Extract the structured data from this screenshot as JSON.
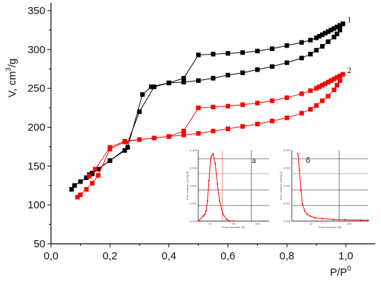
{
  "chart_data": {
    "type": "scatter",
    "title": "",
    "xlabel": "P/P",
    "xlabel_sup": "0",
    "ylabel": "V, cm",
    "ylabel_sup": "3",
    "ylabel_tail": "/g",
    "xlim": [
      0.0,
      1.1
    ],
    "ylim": [
      50,
      360
    ],
    "xticks": [
      0.0,
      0.2,
      0.4,
      0.6,
      0.8,
      1.0
    ],
    "xtick_labels": [
      "0,0",
      "0,2",
      "0,4",
      "0,6",
      "0,8",
      "1,0"
    ],
    "yticks": [
      50,
      100,
      150,
      200,
      250,
      300,
      350
    ],
    "ytick_labels": [
      "50",
      "100",
      "150",
      "200",
      "250",
      "300",
      "350"
    ],
    "grid": false,
    "series": [
      {
        "name": "1",
        "color": "#000000",
        "marker": "square",
        "adsorption": {
          "x": [
            0.07,
            0.08,
            0.1,
            0.12,
            0.14,
            0.16,
            0.2,
            0.25,
            0.3,
            0.35,
            0.4,
            0.45,
            0.5,
            0.55,
            0.6,
            0.65,
            0.7,
            0.75,
            0.8,
            0.85,
            0.88,
            0.9,
            0.92,
            0.94,
            0.96,
            0.97,
            0.98,
            0.99
          ],
          "y": [
            120,
            125,
            130,
            135,
            140,
            146,
            157,
            170,
            220,
            252,
            257,
            258,
            260,
            263,
            267,
            270,
            274,
            278,
            283,
            289,
            294,
            299,
            304,
            310,
            316,
            320,
            325,
            333
          ]
        },
        "desorption": {
          "x": [
            0.99,
            0.98,
            0.97,
            0.96,
            0.95,
            0.94,
            0.93,
            0.92,
            0.91,
            0.9,
            0.88,
            0.85,
            0.8,
            0.75,
            0.7,
            0.65,
            0.6,
            0.55,
            0.5,
            0.45,
            0.4,
            0.34,
            0.31,
            0.26,
            0.2,
            0.14,
            0.13
          ],
          "y": [
            333,
            331,
            329,
            327,
            325,
            323,
            321,
            319,
            317,
            315,
            312,
            309,
            305,
            301,
            298,
            296,
            295,
            294,
            293,
            263,
            257,
            252,
            242,
            174,
            157,
            141,
            139
          ]
        }
      },
      {
        "name": "2",
        "color": "#ff0000",
        "marker": "square",
        "adsorption": {
          "x": [
            0.09,
            0.1,
            0.12,
            0.14,
            0.16,
            0.2,
            0.25,
            0.3,
            0.35,
            0.4,
            0.45,
            0.5,
            0.55,
            0.6,
            0.65,
            0.7,
            0.75,
            0.8,
            0.85,
            0.88,
            0.9,
            0.92,
            0.94,
            0.96,
            0.97,
            0.98,
            0.99
          ],
          "y": [
            110,
            113,
            120,
            128,
            138,
            172,
            181,
            184,
            186,
            188,
            190,
            192,
            195,
            198,
            201,
            204,
            208,
            212,
            218,
            223,
            228,
            234,
            240,
            248,
            254,
            260,
            268
          ]
        },
        "desorption": {
          "x": [
            0.99,
            0.98,
            0.97,
            0.96,
            0.95,
            0.94,
            0.93,
            0.92,
            0.91,
            0.9,
            0.88,
            0.85,
            0.8,
            0.75,
            0.7,
            0.65,
            0.6,
            0.55,
            0.5,
            0.45,
            0.4,
            0.35,
            0.3,
            0.25,
            0.2,
            0.15,
            0.13
          ],
          "y": [
            268,
            266,
            264,
            262,
            260,
            258,
            256,
            254,
            252,
            250,
            247,
            243,
            238,
            234,
            231,
            229,
            227,
            226,
            225,
            195,
            188,
            186,
            184,
            182,
            174,
            146,
            137
          ]
        }
      }
    ],
    "insets": [
      {
        "label": "а",
        "ylabel": "Pore Volume (cm³/g·Å)",
        "xlabel": "Pore Diameter (Å)",
        "ytick_labels": [
          "0.000",
          "0.001",
          "0.002",
          "0.003",
          "0.004"
        ],
        "xtick_labels": [
          "10",
          "50",
          "100"
        ],
        "color": "#ff0000",
        "x": [
          0.0,
          0.07,
          0.09,
          0.11,
          0.13,
          0.15,
          0.18,
          0.21,
          0.24,
          0.27,
          0.3,
          0.35,
          0.4,
          0.45,
          0.5
        ],
        "y": [
          0.0,
          0.0003,
          0.0004,
          0.0006,
          0.0012,
          0.0024,
          0.0038,
          0.004,
          0.0034,
          0.0022,
          0.0012,
          0.0004,
          0.0001,
          0.0,
          0.0
        ]
      },
      {
        "label": "б",
        "ylabel": "Pore Volume (cm³/g·Å)",
        "xlabel": "Pore Diameter (Å)",
        "ytick_labels": [
          "0.000",
          "0.001",
          "0.002",
          "0.003",
          "0.004"
        ],
        "xtick_labels": [
          "10",
          "100"
        ],
        "color": "#ff0000",
        "x": [
          0.08,
          0.1,
          0.12,
          0.14,
          0.17,
          0.2,
          0.24,
          0.3,
          0.4,
          0.55,
          0.7,
          0.9,
          1.0
        ],
        "y": [
          0.004,
          0.003,
          0.0018,
          0.001,
          0.0006,
          0.0004,
          0.0003,
          0.0002,
          0.00015,
          0.0001,
          8e-05,
          6e-05,
          5e-05
        ]
      }
    ]
  }
}
